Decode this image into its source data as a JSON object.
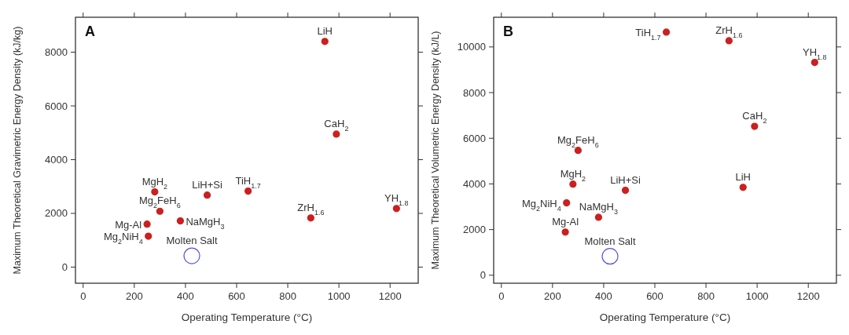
{
  "chart_data": [
    {
      "type": "scatter",
      "title": "A",
      "xlabel": "Operating Temperature (°C)",
      "ylabel": "Maximum Theoretical Gravimetric Energy Density (kJ/kg)",
      "xlim": [
        -30,
        1310
      ],
      "ylim": [
        -600,
        9300
      ],
      "xticks": [
        0,
        200,
        400,
        600,
        800,
        1000,
        1200
      ],
      "yticks": [
        0,
        2000,
        4000,
        6000,
        8000
      ],
      "marker": "circle",
      "grid": false,
      "series": [
        {
          "color": "#cc1f1f",
          "x": [
            945,
            990,
            645,
            485,
            280,
            300,
            380,
            250,
            255,
            890,
            1225
          ],
          "values": [
            8400,
            4950,
            2830,
            2680,
            2800,
            2080,
            1720,
            1600,
            1150,
            1830,
            2180
          ]
        },
        {
          "color": "#5555dd",
          "x": [
            425
          ],
          "values": [
            420
          ]
        }
      ],
      "annotations": [
        {
          "text": "LiH",
          "x": 945,
          "y": 8400
        },
        {
          "text": "CaH$_{2}$",
          "x": 990,
          "y": 4950
        },
        {
          "text": "TiH$_{1.7}$",
          "x": 645,
          "y": 2830
        },
        {
          "text": "LiH+Si",
          "x": 485,
          "y": 2680
        },
        {
          "text": "MgH$_{2}$",
          "x": 280,
          "y": 2800
        },
        {
          "text": "Mg$_{2}$FeH$_{6}$",
          "x": 300,
          "y": 2080
        },
        {
          "text": "NaMgH$_{3}$",
          "x": 380,
          "y": 1720
        },
        {
          "text": "Mg-Al",
          "x": 250,
          "y": 1600
        },
        {
          "text": "Mg$_{2}$NiH$_{4}$",
          "x": 255,
          "y": 1150
        },
        {
          "text": "ZrH$_{1.6}$",
          "x": 890,
          "y": 1830
        },
        {
          "text": "YH$_{1.8}$",
          "x": 1225,
          "y": 2180
        },
        {
          "text": "Molten Salt",
          "x": 425,
          "y": 420
        }
      ]
    },
    {
      "type": "scatter",
      "title": "B",
      "xlabel": "Operating Temperature (°C)",
      "ylabel": "Maximum Theoretical Volumetric Energy Density (kJ/L)",
      "xlim": [
        -30,
        1310
      ],
      "ylim": [
        -350,
        11300
      ],
      "xticks": [
        0,
        200,
        400,
        600,
        800,
        1000,
        1200
      ],
      "yticks": [
        0,
        2000,
        4000,
        6000,
        8000,
        10000
      ],
      "marker": "circle",
      "grid": false,
      "series": [
        {
          "color": "#cc1f1f",
          "x": [
            645,
            890,
            1225,
            990,
            300,
            280,
            485,
            945,
            255,
            380,
            250
          ],
          "values": [
            10650,
            10270,
            9320,
            6520,
            5470,
            3990,
            3720,
            3850,
            3170,
            2540,
            1890
          ]
        },
        {
          "color": "#5555dd",
          "x": [
            425
          ],
          "values": [
            830
          ]
        }
      ],
      "annotations": [
        {
          "text": "TiH$_{1.7}$",
          "x": 645,
          "y": 10650
        },
        {
          "text": "ZrH$_{1.6}$",
          "x": 890,
          "y": 10270
        },
        {
          "text": "YH$_{1.8}$",
          "x": 1225,
          "y": 9320
        },
        {
          "text": "CaH$_{2}$",
          "x": 990,
          "y": 6520
        },
        {
          "text": "Mg$_{2}$FeH$_{6}$",
          "x": 300,
          "y": 5470
        },
        {
          "text": "MgH$_{2}$",
          "x": 280,
          "y": 3990
        },
        {
          "text": "LiH+Si",
          "x": 485,
          "y": 3720
        },
        {
          "text": "LiH",
          "x": 945,
          "y": 3850
        },
        {
          "text": "Mg$_{2}$NiH$_{4}$",
          "x": 255,
          "y": 3170
        },
        {
          "text": "NaMgH$_{3}$",
          "x": 380,
          "y": 2540
        },
        {
          "text": "Mg-Al",
          "x": 250,
          "y": 1890
        },
        {
          "text": "Molten Salt",
          "x": 425,
          "y": 830
        }
      ]
    }
  ]
}
